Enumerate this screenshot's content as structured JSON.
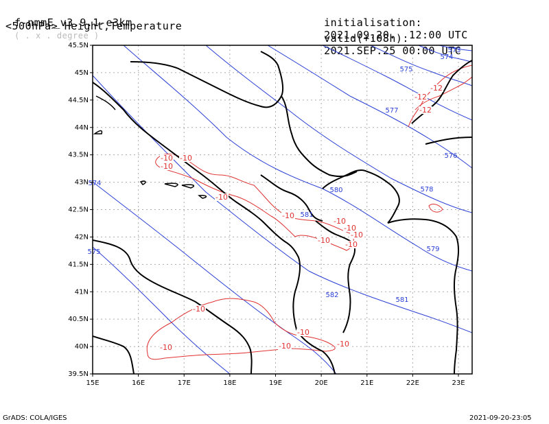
{
  "header": {
    "model": "f-nmmE_v3.9.1-e3km",
    "units": "( . x . degree )",
    "level_title": "<500hPa> Height,Temperature",
    "init_label": "initialisation:",
    "init_value": "2021.09.20.  12:00 UTC",
    "valid_label": "valid(+108h):",
    "valid_value": "2021.SEP.25 00:00 UTC"
  },
  "footer": {
    "left": "GrADS: COLA/IGES",
    "right": "2021-09-20-23:05"
  },
  "map": {
    "lon_range": [
      15,
      23.3
    ],
    "lat_range": [
      39.5,
      45.5
    ],
    "lon_ticks": [
      "15E",
      "16E",
      "17E",
      "18E",
      "19E",
      "20E",
      "21E",
      "22E",
      "23E"
    ],
    "lat_ticks": [
      "39.5N",
      "40N",
      "40.5N",
      "41N",
      "41.5N",
      "42N",
      "42.5N",
      "43N",
      "43.5N",
      "44N",
      "44.5N",
      "45N",
      "45.5N"
    ],
    "height_color": "#2a3fd6",
    "temp_color": "#e03030",
    "height_labels": [
      "573",
      "574",
      "575",
      "577",
      "576",
      "578",
      "579",
      "580",
      "581",
      "581",
      "582",
      "574",
      "575"
    ],
    "temp_labels": [
      "-12",
      "-12",
      "-12",
      "-10",
      "-10",
      "-10",
      "-10",
      "-10",
      "-10",
      "-10",
      "-10",
      "-10",
      "-10",
      "-10",
      "-10",
      "-10",
      "-10",
      "-10"
    ]
  }
}
